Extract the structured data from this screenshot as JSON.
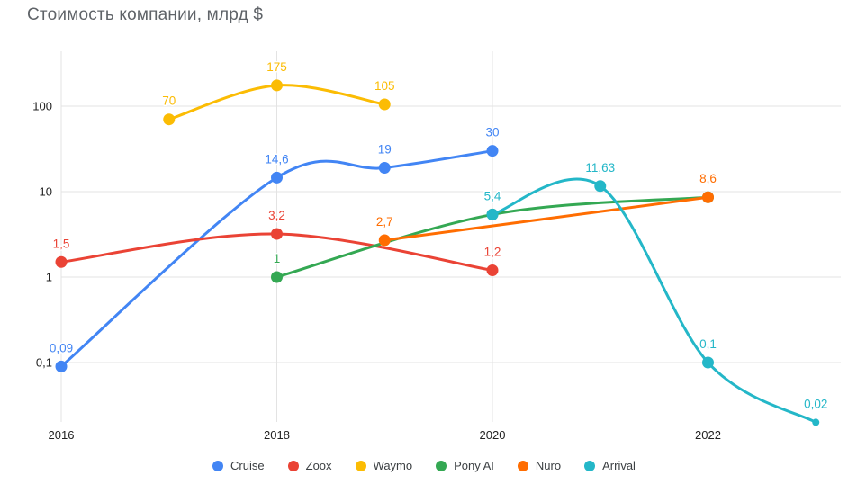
{
  "chart_data": {
    "type": "line",
    "title": "Стоимость компании, млрд $",
    "y_scale": "log",
    "grid": true,
    "legend_position": "bottom",
    "line_smoothing": true,
    "x_axis": {
      "tick_years": [
        2016,
        2018,
        2020,
        2022
      ],
      "tick_labels": [
        "2016",
        "2018",
        "2020",
        "2022"
      ],
      "range": [
        2016,
        2023.3
      ]
    },
    "y_axis": {
      "tick_values": [
        100,
        10,
        1,
        0.1
      ],
      "tick_labels": [
        "100",
        "10",
        "1",
        "0,1"
      ],
      "range": [
        0.02,
        400
      ]
    },
    "colors": {
      "cruise": "#4285F4",
      "zoox": "#EA4335",
      "waymo": "#FBBC04",
      "pony_ai": "#34A853",
      "nuro": "#FF6D01",
      "arrival": "#24B7C8",
      "gridline": "#e3e3e3",
      "axis_text": "#222222",
      "title_text": "#5f6368"
    },
    "series": [
      {
        "name": "Cruise",
        "color": "#4285F4",
        "points": [
          {
            "x": 2016,
            "y": 0.09,
            "label": "0,09"
          },
          {
            "x": 2018,
            "y": 14.6,
            "label": "14,6"
          },
          {
            "x": 2019,
            "y": 19,
            "label": "19"
          },
          {
            "x": 2020,
            "y": 30,
            "label": "30"
          }
        ]
      },
      {
        "name": "Zoox",
        "color": "#EA4335",
        "points": [
          {
            "x": 2016,
            "y": 1.5,
            "label": "1,5"
          },
          {
            "x": 2018,
            "y": 3.2,
            "label": "3,2"
          },
          {
            "x": 2020,
            "y": 1.2,
            "label": "1,2"
          }
        ]
      },
      {
        "name": "Waymo",
        "color": "#FBBC04",
        "points": [
          {
            "x": 2017,
            "y": 70,
            "label": "70"
          },
          {
            "x": 2018,
            "y": 175,
            "label": "175"
          },
          {
            "x": 2019,
            "y": 105,
            "label": "105"
          }
        ]
      },
      {
        "name": "Pony AI",
        "color": "#34A853",
        "points": [
          {
            "x": 2018,
            "y": 1,
            "label": "1"
          },
          {
            "x": 2020,
            "y": 5.4,
            "label": ""
          },
          {
            "x": 2022,
            "y": 8.6,
            "label": ""
          }
        ]
      },
      {
        "name": "Nuro",
        "color": "#FF6D01",
        "points": [
          {
            "x": 2019,
            "y": 2.7,
            "label": "2,7"
          },
          {
            "x": 2022,
            "y": 8.6,
            "label": "8,6"
          }
        ]
      },
      {
        "name": "Arrival",
        "color": "#24B7C8",
        "points": [
          {
            "x": 2020,
            "y": 5.4,
            "label": "5,4"
          },
          {
            "x": 2021,
            "y": 11.63,
            "label": "11,63"
          },
          {
            "x": 2022,
            "y": 0.1,
            "label": "0,1"
          },
          {
            "x": 2023,
            "y": 0.02,
            "label": "0,02",
            "marker_r": 4
          }
        ]
      }
    ]
  }
}
